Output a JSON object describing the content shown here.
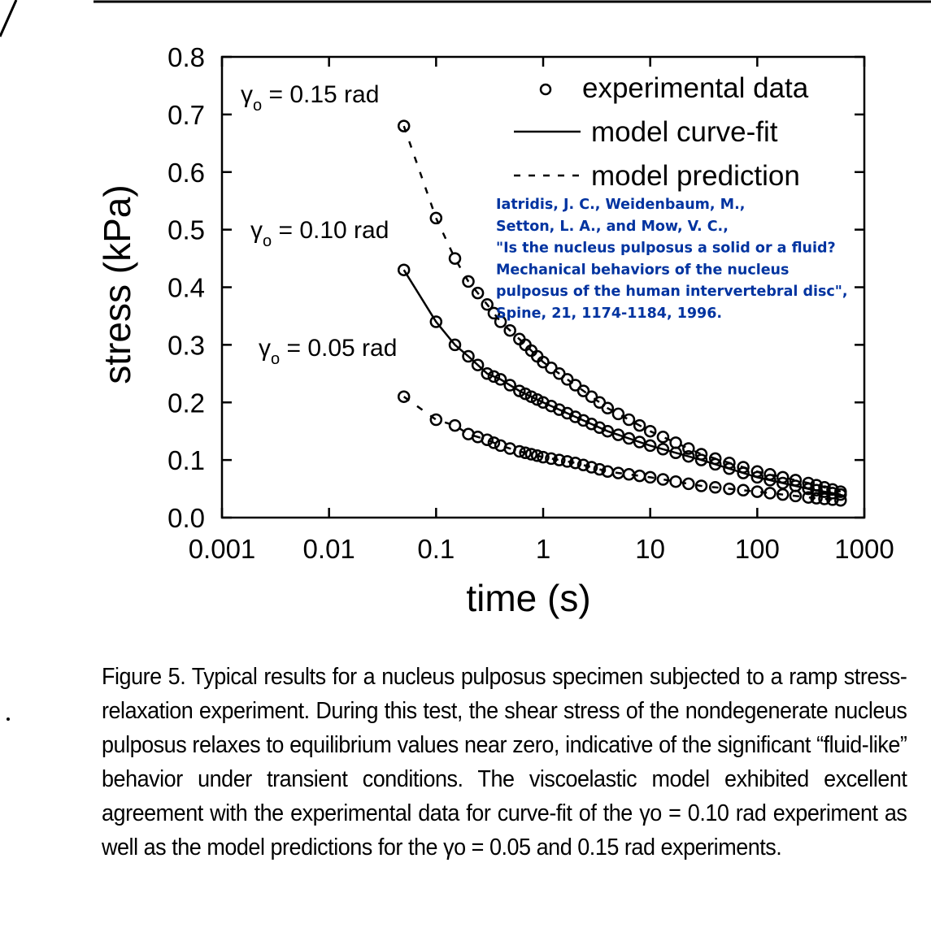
{
  "chart_data": {
    "type": "scatter",
    "xlabel": "time (s)",
    "ylabel": "stress (kPa)",
    "xscale": "log",
    "xlim": [
      0.001,
      1000
    ],
    "ylim": [
      0.0,
      0.8
    ],
    "xticks": [
      "0.001",
      "0.01",
      "0.1",
      "1",
      "10",
      "100",
      "1000"
    ],
    "xtick_values": [
      0.001,
      0.01,
      0.1,
      1,
      10,
      100,
      1000
    ],
    "yticks": [
      "0.0",
      "0.1",
      "0.2",
      "0.3",
      "0.4",
      "0.5",
      "0.6",
      "0.7",
      "0.8"
    ],
    "ytick_values": [
      0,
      0.1,
      0.2,
      0.3,
      0.4,
      0.5,
      0.6,
      0.7,
      0.8
    ],
    "legend": {
      "placement": "top-right",
      "entries": [
        "experimental data",
        "model curve-fit",
        "model prediction"
      ]
    },
    "x": [
      0.05,
      0.1,
      0.15,
      0.2,
      0.3,
      0.4,
      0.6,
      1,
      2,
      4,
      10,
      30,
      100,
      300,
      600
    ],
    "series": [
      {
        "name": "γo = 0.15 rad",
        "label_main": "γ",
        "label_sub": "o",
        "label_rest": " = 0.15 rad",
        "model": "model prediction",
        "values": [
          0.68,
          0.52,
          0.45,
          0.41,
          0.37,
          0.34,
          0.31,
          0.27,
          0.23,
          0.19,
          0.15,
          0.11,
          0.08,
          0.06,
          0.045
        ]
      },
      {
        "name": "γo = 0.10 rad",
        "label_main": "γ",
        "label_sub": "o",
        "label_rest": " = 0.10 rad",
        "model": "model curve-fit",
        "values": [
          0.43,
          0.34,
          0.3,
          0.28,
          0.25,
          0.24,
          0.22,
          0.2,
          0.175,
          0.15,
          0.125,
          0.1,
          0.07,
          0.05,
          0.04
        ]
      },
      {
        "name": "γo = 0.05 rad",
        "label_main": "γ",
        "label_sub": "o",
        "label_rest": " = 0.05 rad",
        "model": "model prediction",
        "values": [
          0.21,
          0.17,
          0.16,
          0.145,
          0.135,
          0.125,
          0.115,
          0.105,
          0.095,
          0.08,
          0.07,
          0.055,
          0.045,
          0.035,
          0.03
        ]
      }
    ],
    "annotations": {
      "citation": [
        "Iatridis, J. C., Weidenbaum, M.,",
        "Setton, L. A., and Mow, V. C.,",
        "\"Is the nucleus pulposus a solid or a fluid?",
        "Mechanical behaviors of the nucleus",
        "pulposus of the human intervertebral disc\",",
        "Spine, 21, 1174-1184, 1996."
      ]
    },
    "colors": {
      "ink": "#000000",
      "citation": "#0033a0"
    }
  },
  "caption": "Figure 5. Typical results for a nucleus pulposus specimen subjected to a ramp stress-relaxation experiment. During this test, the shear stress of the nondegenerate nucleus pulposus relaxes to equilibrium values near zero, indicative of the significant “fluid-like” behavior under transient conditions. The viscoelastic model exhibited excellent agreement with the experimental data for curve-fit of the γo = 0.10 rad experiment as well as the model predictions for the γo = 0.05 and 0.15 rad experiments."
}
